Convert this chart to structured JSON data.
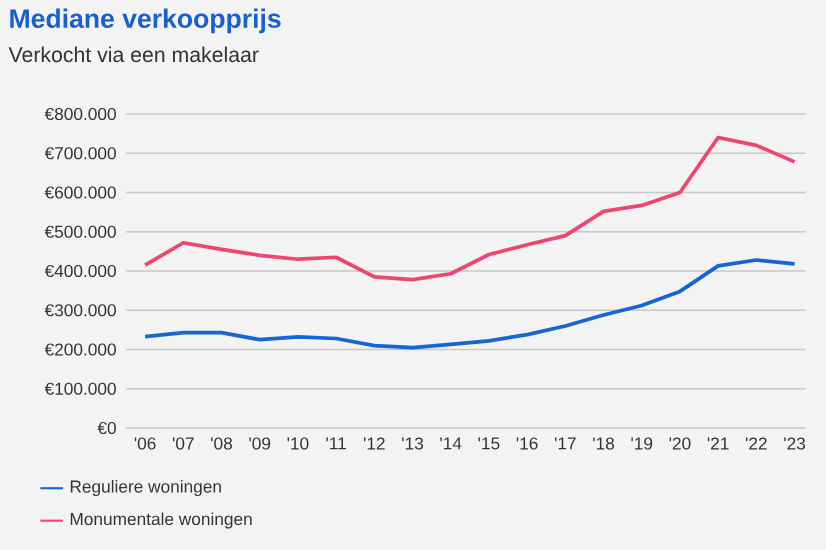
{
  "chart_data": {
    "type": "line",
    "title": "Mediane verkoopprijs",
    "subtitle": "Verkocht via een makelaar",
    "categories": [
      "'06",
      "'07",
      "'08",
      "'09",
      "'10",
      "'11",
      "'12",
      "'13",
      "'14",
      "'15",
      "'16",
      "'17",
      "'18",
      "'19",
      "'20",
      "'21",
      "'22",
      "'23"
    ],
    "series": [
      {
        "name": "Reguliere woningen",
        "color": "#1565d8",
        "values": [
          233000,
          243000,
          243000,
          225000,
          232000,
          228000,
          210000,
          205000,
          213000,
          222000,
          238000,
          260000,
          288000,
          312000,
          348000,
          413000,
          428000,
          418000
        ]
      },
      {
        "name": "Monumentale woningen",
        "color": "#f0456e",
        "values": [
          415000,
          472000,
          455000,
          440000,
          430000,
          435000,
          385000,
          378000,
          393000,
          442000,
          467000,
          490000,
          552000,
          567000,
          600000,
          740000,
          720000,
          678000
        ]
      }
    ],
    "ylim": [
      0,
      800000
    ],
    "yticks": [
      {
        "value": 0,
        "label": "€0"
      },
      {
        "value": 100000,
        "label": "€100.000"
      },
      {
        "value": 200000,
        "label": "€200.000"
      },
      {
        "value": 300000,
        "label": "€300.000"
      },
      {
        "value": 400000,
        "label": "€400.000"
      },
      {
        "value": 500000,
        "label": "€500.000"
      },
      {
        "value": 600000,
        "label": "€600.000"
      },
      {
        "value": 700000,
        "label": "€700.000"
      },
      {
        "value": 800000,
        "label": "€800.000"
      }
    ],
    "grid": "y",
    "legend": "bottom left",
    "marker": "none",
    "line_style": "solid"
  }
}
